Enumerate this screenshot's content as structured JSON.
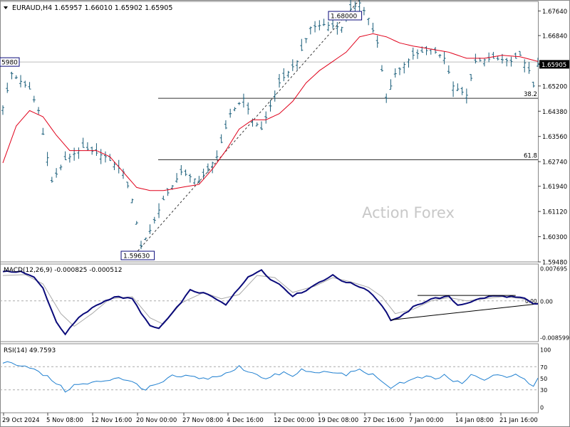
{
  "header": {
    "text": "EURAUD,H4  1.65957 1.66010 1.65902 1.65905"
  },
  "colors": {
    "bull": "#1a5e7a",
    "bear": "#1a5e7a",
    "ma": "#e0001a",
    "macd": "#0a0a7a",
    "signal": "#a8a8a8",
    "rsi": "#1e7fd0",
    "grid": "#555555",
    "dash": "#888888"
  },
  "chart_data": [
    {
      "type": "candlestick",
      "symbol": "EURAUD",
      "timeframe": "H4",
      "ylim": [
        1.5948,
        1.6795
      ],
      "y_ticks": [
        "1.67640",
        "1.66840",
        "1.65920",
        "1.65200",
        "1.64380",
        "1.63560",
        "1.62740",
        "1.61940",
        "1.61120",
        "1.60300",
        "1.59480"
      ],
      "x_ticks": [
        "29 Oct 2024",
        "5 Nov 08:00",
        "12 Nov 16:00",
        "20 Nov 00:00",
        "27 Nov 08:00",
        "4 Dec 16:00",
        "12 Dec 00:00",
        "19 Dec 08:00",
        "27 Dec 16:00",
        "7 Jan 00:00",
        "14 Jan 08:00",
        "21 Jan 16:00"
      ],
      "last_price": "1.65905",
      "left_level": {
        "label": "5980",
        "value": 1.6598
      },
      "high_label": {
        "label": "1.68000",
        "value": 1.68
      },
      "low_label": {
        "label": "1.59630",
        "value": 1.5963
      },
      "fib_levels": [
        {
          "label": "38.2",
          "value": 1.648
        },
        {
          "label": "61.8",
          "value": 1.628
        }
      ],
      "watermark": "Action Forex",
      "close_path": [
        [
          0,
          1.645
        ],
        [
          2,
          1.656
        ],
        [
          6,
          1.651
        ],
        [
          8,
          1.644
        ],
        [
          11,
          1.621
        ],
        [
          14,
          1.628
        ],
        [
          18,
          1.632
        ],
        [
          23,
          1.629
        ],
        [
          27,
          1.624
        ],
        [
          29,
          1.615
        ],
        [
          31,
          1.6
        ],
        [
          33,
          1.605
        ],
        [
          36,
          1.615
        ],
        [
          40,
          1.624
        ],
        [
          44,
          1.621
        ],
        [
          48,
          1.629
        ],
        [
          51,
          1.643
        ],
        [
          54,
          1.648
        ],
        [
          56,
          1.641
        ],
        [
          58,
          1.638
        ],
        [
          62,
          1.653
        ],
        [
          66,
          1.66
        ],
        [
          69,
          1.671
        ],
        [
          72,
          1.672
        ],
        [
          76,
          1.671
        ],
        [
          78,
          1.677
        ],
        [
          80,
          1.679
        ],
        [
          82,
          1.674
        ],
        [
          84,
          1.666
        ],
        [
          86,
          1.648
        ],
        [
          88,
          1.656
        ],
        [
          92,
          1.662
        ],
        [
          96,
          1.664
        ],
        [
          99,
          1.661
        ],
        [
          101,
          1.652
        ],
        [
          104,
          1.649
        ],
        [
          106,
          1.66
        ],
        [
          110,
          1.661
        ],
        [
          114,
          1.66
        ],
        [
          116,
          1.662
        ],
        [
          118,
          1.657
        ],
        [
          119,
          1.652
        ],
        [
          120,
          1.659
        ]
      ],
      "ma_path": [
        [
          0,
          1.627
        ],
        [
          3,
          1.639
        ],
        [
          6,
          1.644
        ],
        [
          9,
          1.642
        ],
        [
          12,
          1.636
        ],
        [
          15,
          1.631
        ],
        [
          18,
          1.631
        ],
        [
          21,
          1.631
        ],
        [
          24,
          1.629
        ],
        [
          27,
          1.624
        ],
        [
          30,
          1.619
        ],
        [
          33,
          1.618
        ],
        [
          36,
          1.618
        ],
        [
          40,
          1.619
        ],
        [
          44,
          1.62
        ],
        [
          47,
          1.625
        ],
        [
          50,
          1.631
        ],
        [
          53,
          1.638
        ],
        [
          56,
          1.641
        ],
        [
          59,
          1.641
        ],
        [
          62,
          1.643
        ],
        [
          65,
          1.647
        ],
        [
          68,
          1.653
        ],
        [
          71,
          1.657
        ],
        [
          74,
          1.66
        ],
        [
          77,
          1.663
        ],
        [
          80,
          1.668
        ],
        [
          83,
          1.669
        ],
        [
          86,
          1.668
        ],
        [
          89,
          1.666
        ],
        [
          92,
          1.665
        ],
        [
          96,
          1.664
        ],
        [
          100,
          1.663
        ],
        [
          104,
          1.661
        ],
        [
          108,
          1.661
        ],
        [
          112,
          1.662
        ],
        [
          116,
          1.6615
        ],
        [
          120,
          1.66
        ]
      ],
      "trendline": [
        [
          29,
          1.5963
        ],
        [
          80,
          1.68
        ]
      ]
    },
    {
      "type": "line",
      "title": "MACD(12,26,9) -0.000825 -0.000512",
      "ylim": [
        -0.008599,
        0.007695
      ],
      "y_ticks": [
        "0.007695",
        "0.00",
        "-0.008599"
      ],
      "zero_label": "0.00",
      "series": [
        {
          "points": [
            [
              0,
              0.0068
            ],
            [
              4,
              0.007
            ],
            [
              7,
              0.0055
            ],
            [
              9,
              0.003
            ],
            [
              12,
              -0.005
            ],
            [
              14,
              -0.0078
            ],
            [
              17,
              -0.004
            ],
            [
              21,
              -0.001
            ],
            [
              25,
              0.001
            ],
            [
              29,
              0.0005
            ],
            [
              33,
              -0.006
            ],
            [
              35,
              -0.0065
            ],
            [
              38,
              -0.003
            ],
            [
              42,
              0.0025
            ],
            [
              46,
              0.0015
            ],
            [
              50,
              -0.001
            ],
            [
              52,
              0.002
            ],
            [
              55,
              0.0055
            ],
            [
              58,
              0.0075
            ],
            [
              60,
              0.005
            ],
            [
              62,
              0.004
            ],
            [
              65,
              0.0012
            ],
            [
              68,
              0.0025
            ],
            [
              71,
              0.0045
            ],
            [
              74,
              0.006
            ],
            [
              76,
              0.0048
            ],
            [
              79,
              0.0038
            ],
            [
              82,
              0.0025
            ],
            [
              85,
              -0.001
            ],
            [
              87,
              -0.0045
            ],
            [
              89,
              -0.004
            ],
            [
              92,
              -0.0015
            ],
            [
              96,
              0.0005
            ],
            [
              100,
              0.001
            ],
            [
              102,
              -0.001
            ],
            [
              104,
              -0.0005
            ],
            [
              107,
              0.0005
            ],
            [
              110,
              0.0012
            ],
            [
              114,
              0.001
            ],
            [
              117,
              0.0005
            ],
            [
              119,
              -0.0008
            ],
            [
              120,
              -0.000825
            ]
          ]
        },
        {
          "points": [
            [
              0,
              0.006
            ],
            [
              5,
              0.0062
            ],
            [
              9,
              0.004
            ],
            [
              13,
              -0.003
            ],
            [
              16,
              -0.006
            ],
            [
              20,
              -0.003
            ],
            [
              24,
              0.0005
            ],
            [
              29,
              0.001
            ],
            [
              33,
              -0.004
            ],
            [
              36,
              -0.0055
            ],
            [
              40,
              -0.0005
            ],
            [
              45,
              0.002
            ],
            [
              49,
              0.0005
            ],
            [
              53,
              0.0015
            ],
            [
              57,
              0.006
            ],
            [
              61,
              0.0055
            ],
            [
              65,
              0.002
            ],
            [
              70,
              0.0035
            ],
            [
              74,
              0.0055
            ],
            [
              78,
              0.0045
            ],
            [
              82,
              0.0032
            ],
            [
              85,
              0.001
            ],
            [
              88,
              -0.003
            ],
            [
              92,
              -0.002
            ],
            [
              96,
              0.0
            ],
            [
              100,
              0.0008
            ],
            [
              104,
              0.0
            ],
            [
              108,
              0.0005
            ],
            [
              112,
              0.001
            ],
            [
              116,
              0.0006
            ],
            [
              120,
              -0.000512
            ]
          ]
        }
      ],
      "trendlines": [
        {
          "points": [
            [
              87,
              -0.0045
            ],
            [
              119,
              -0.0008
            ]
          ]
        },
        {
          "points": [
            [
              93,
              0.0013
            ],
            [
              115,
              0.0013
            ]
          ]
        }
      ]
    },
    {
      "type": "line",
      "title": "RSI(14) 49.7593",
      "ylim": [
        0,
        100
      ],
      "y_ticks": [
        "100",
        "70",
        "50",
        "30",
        "0"
      ],
      "levels": [
        70,
        30
      ],
      "series": [
        {
          "points": [
            [
              0,
              78
            ],
            [
              3,
              75
            ],
            [
              6,
              70
            ],
            [
              8,
              60
            ],
            [
              10,
              52
            ],
            [
              12,
              42
            ],
            [
              14,
              28
            ],
            [
              16,
              38
            ],
            [
              19,
              40
            ],
            [
              22,
              45
            ],
            [
              24,
              48
            ],
            [
              26,
              52
            ],
            [
              28,
              45
            ],
            [
              30,
              40
            ],
            [
              32,
              30
            ],
            [
              34,
              38
            ],
            [
              36,
              42
            ],
            [
              38,
              55
            ],
            [
              40,
              50
            ],
            [
              42,
              55
            ],
            [
              44,
              48
            ],
            [
              47,
              52
            ],
            [
              49,
              55
            ],
            [
              51,
              60
            ],
            [
              53,
              70
            ],
            [
              55,
              62
            ],
            [
              57,
              58
            ],
            [
              59,
              48
            ],
            [
              61,
              55
            ],
            [
              63,
              60
            ],
            [
              65,
              52
            ],
            [
              67,
              65
            ],
            [
              69,
              60
            ],
            [
              71,
              62
            ],
            [
              73,
              58
            ],
            [
              75,
              60
            ],
            [
              77,
              55
            ],
            [
              79,
              65
            ],
            [
              81,
              62
            ],
            [
              83,
              55
            ],
            [
              85,
              42
            ],
            [
              87,
              35
            ],
            [
              89,
              42
            ],
            [
              91,
              45
            ],
            [
              93,
              50
            ],
            [
              95,
              52
            ],
            [
              97,
              48
            ],
            [
              99,
              55
            ],
            [
              101,
              45
            ],
            [
              103,
              40
            ],
            [
              105,
              55
            ],
            [
              107,
              50
            ],
            [
              109,
              48
            ],
            [
              111,
              58
            ],
            [
              113,
              52
            ],
            [
              115,
              55
            ],
            [
              117,
              48
            ],
            [
              118,
              42
            ],
            [
              119,
              38
            ],
            [
              120,
              49.76
            ]
          ]
        }
      ]
    }
  ]
}
